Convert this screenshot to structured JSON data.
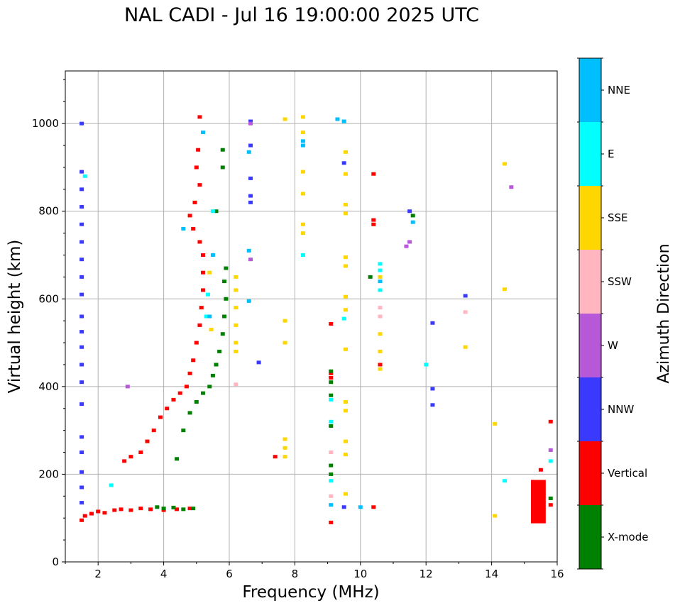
{
  "chart_data": {
    "type": "scatter",
    "title": "NAL CADI - Jul 16 19:00:00 2025 UTC",
    "xlabel": "Frequency (MHz)",
    "ylabel": "Virtual height (km)",
    "xlim": [
      1,
      16
    ],
    "ylim": [
      0,
      1120
    ],
    "xticks": [
      2,
      4,
      6,
      8,
      10,
      12,
      14,
      16
    ],
    "yticks": [
      0,
      200,
      400,
      600,
      800,
      1000
    ],
    "grid": true,
    "colorbar": {
      "label": "Azimuth Direction",
      "categories": [
        {
          "name": "X-mode",
          "color": "#008000"
        },
        {
          "name": "Vertical",
          "color": "#ff0000"
        },
        {
          "name": "NNW",
          "color": "#3a3aff"
        },
        {
          "name": "W",
          "color": "#b658d8"
        },
        {
          "name": "SSW",
          "color": "#ffb6c1"
        },
        {
          "name": "SSE",
          "color": "#ffd700"
        },
        {
          "name": "E",
          "color": "#00ffff"
        },
        {
          "name": "NNE",
          "color": "#00bfff"
        }
      ]
    },
    "series": [
      {
        "name": "Vertical",
        "points": [
          [
            1.5,
            95
          ],
          [
            1.6,
            105
          ],
          [
            1.8,
            110
          ],
          [
            2.0,
            115
          ],
          [
            2.2,
            112
          ],
          [
            2.5,
            118
          ],
          [
            2.7,
            120
          ],
          [
            3.0,
            118
          ],
          [
            3.3,
            122
          ],
          [
            3.6,
            120
          ],
          [
            4.0,
            118
          ],
          [
            4.4,
            120
          ],
          [
            4.8,
            122
          ],
          [
            2.8,
            230
          ],
          [
            3.0,
            240
          ],
          [
            3.3,
            250
          ],
          [
            3.5,
            275
          ],
          [
            3.7,
            300
          ],
          [
            3.9,
            330
          ],
          [
            4.1,
            350
          ],
          [
            4.3,
            370
          ],
          [
            4.5,
            385
          ],
          [
            4.7,
            400
          ],
          [
            4.8,
            430
          ],
          [
            4.9,
            460
          ],
          [
            5.0,
            500
          ],
          [
            5.1,
            540
          ],
          [
            5.15,
            580
          ],
          [
            5.2,
            620
          ],
          [
            5.2,
            660
          ],
          [
            5.2,
            700
          ],
          [
            5.1,
            730
          ],
          [
            4.9,
            760
          ],
          [
            4.8,
            790
          ],
          [
            4.95,
            820
          ],
          [
            5.1,
            860
          ],
          [
            5.0,
            900
          ],
          [
            5.05,
            940
          ],
          [
            5.1,
            1015
          ],
          [
            9.1,
            90
          ],
          [
            9.1,
            420
          ],
          [
            9.1,
            430
          ],
          [
            9.1,
            543
          ],
          [
            10.4,
            125
          ],
          [
            10.4,
            770
          ],
          [
            10.4,
            780
          ],
          [
            10.4,
            885
          ],
          [
            10.6,
            450
          ],
          [
            7.4,
            240
          ],
          [
            15.5,
            210
          ],
          [
            15.8,
            320
          ],
          [
            15.8,
            130
          ]
        ]
      },
      {
        "name": "X-mode",
        "points": [
          [
            3.8,
            125
          ],
          [
            4.0,
            122
          ],
          [
            4.3,
            124
          ],
          [
            4.6,
            120
          ],
          [
            4.9,
            122
          ],
          [
            4.4,
            235
          ],
          [
            4.6,
            300
          ],
          [
            4.8,
            340
          ],
          [
            5.0,
            365
          ],
          [
            5.2,
            385
          ],
          [
            5.4,
            400
          ],
          [
            5.5,
            425
          ],
          [
            5.6,
            450
          ],
          [
            5.7,
            480
          ],
          [
            5.8,
            520
          ],
          [
            5.85,
            560
          ],
          [
            5.9,
            600
          ],
          [
            5.85,
            640
          ],
          [
            5.9,
            670
          ],
          [
            5.6,
            800
          ],
          [
            5.8,
            900
          ],
          [
            5.8,
            940
          ],
          [
            9.1,
            200
          ],
          [
            9.1,
            220
          ],
          [
            9.1,
            310
          ],
          [
            9.1,
            380
          ],
          [
            9.1,
            410
          ],
          [
            9.1,
            435
          ],
          [
            10.3,
            650
          ],
          [
            11.6,
            790
          ],
          [
            15.8,
            145
          ]
        ]
      },
      {
        "name": "NNW",
        "points": [
          [
            1.5,
            1000
          ],
          [
            1.5,
            890
          ],
          [
            1.5,
            850
          ],
          [
            1.5,
            810
          ],
          [
            1.5,
            770
          ],
          [
            1.5,
            730
          ],
          [
            1.5,
            690
          ],
          [
            1.5,
            650
          ],
          [
            1.5,
            610
          ],
          [
            1.5,
            560
          ],
          [
            1.5,
            525
          ],
          [
            1.5,
            490
          ],
          [
            1.5,
            450
          ],
          [
            1.5,
            410
          ],
          [
            1.5,
            360
          ],
          [
            1.5,
            285
          ],
          [
            1.5,
            250
          ],
          [
            1.5,
            205
          ],
          [
            1.5,
            170
          ],
          [
            1.5,
            135
          ],
          [
            6.65,
            1005
          ],
          [
            6.65,
            950
          ],
          [
            6.65,
            875
          ],
          [
            6.65,
            835
          ],
          [
            6.65,
            820
          ],
          [
            6.9,
            455
          ],
          [
            9.5,
            910
          ],
          [
            9.5,
            125
          ],
          [
            12.2,
            545
          ],
          [
            12.2,
            395
          ],
          [
            12.2,
            358
          ],
          [
            13.2,
            607
          ],
          [
            11.5,
            800
          ]
        ]
      },
      {
        "name": "W",
        "points": [
          [
            2.9,
            400
          ],
          [
            6.65,
            1000
          ],
          [
            6.65,
            690
          ],
          [
            11.4,
            720
          ],
          [
            14.6,
            855
          ],
          [
            15.8,
            255
          ],
          [
            11.5,
            730
          ]
        ]
      },
      {
        "name": "SSW",
        "points": [
          [
            9.1,
            250
          ],
          [
            9.1,
            150
          ],
          [
            10.6,
            580
          ],
          [
            10.6,
            560
          ],
          [
            13.2,
            570
          ],
          [
            6.2,
            405
          ]
        ]
      },
      {
        "name": "SSE",
        "points": [
          [
            6.2,
            650
          ],
          [
            6.2,
            620
          ],
          [
            6.2,
            580
          ],
          [
            6.2,
            540
          ],
          [
            6.2,
            500
          ],
          [
            6.2,
            480
          ],
          [
            5.45,
            530
          ],
          [
            5.4,
            660
          ],
          [
            7.7,
            280
          ],
          [
            7.7,
            260
          ],
          [
            7.7,
            240
          ],
          [
            7.7,
            550
          ],
          [
            7.7,
            500
          ],
          [
            7.7,
            1010
          ],
          [
            8.25,
            1015
          ],
          [
            8.25,
            980
          ],
          [
            8.25,
            890
          ],
          [
            8.25,
            840
          ],
          [
            8.25,
            770
          ],
          [
            8.25,
            750
          ],
          [
            9.55,
            935
          ],
          [
            9.55,
            885
          ],
          [
            9.55,
            815
          ],
          [
            9.55,
            795
          ],
          [
            9.55,
            695
          ],
          [
            9.55,
            675
          ],
          [
            9.55,
            605
          ],
          [
            9.55,
            575
          ],
          [
            9.55,
            485
          ],
          [
            9.55,
            365
          ],
          [
            9.55,
            345
          ],
          [
            9.55,
            275
          ],
          [
            9.55,
            245
          ],
          [
            9.55,
            155
          ],
          [
            10.6,
            520
          ],
          [
            10.6,
            480
          ],
          [
            10.6,
            440
          ],
          [
            10.6,
            650
          ],
          [
            13.2,
            490
          ],
          [
            14.1,
            315
          ],
          [
            14.1,
            105
          ],
          [
            14.4,
            908
          ],
          [
            14.4,
            622
          ]
        ]
      },
      {
        "name": "E",
        "points": [
          [
            1.6,
            880
          ],
          [
            2.4,
            175
          ],
          [
            5.3,
            560
          ],
          [
            5.35,
            610
          ],
          [
            5.5,
            800
          ],
          [
            8.25,
            700
          ],
          [
            9.1,
            185
          ],
          [
            9.1,
            370
          ],
          [
            9.1,
            320
          ],
          [
            9.5,
            1005
          ],
          [
            9.5,
            555
          ],
          [
            10.6,
            680
          ],
          [
            10.6,
            665
          ],
          [
            10.6,
            620
          ],
          [
            12.0,
            450
          ],
          [
            14.4,
            185
          ],
          [
            15.8,
            230
          ]
        ]
      },
      {
        "name": "NNE",
        "points": [
          [
            5.4,
            560
          ],
          [
            5.5,
            700
          ],
          [
            5.2,
            980
          ],
          [
            6.6,
            710
          ],
          [
            6.6,
            595
          ],
          [
            6.6,
            935
          ],
          [
            8.25,
            960
          ],
          [
            8.25,
            950
          ],
          [
            9.1,
            130
          ],
          [
            9.3,
            1010
          ],
          [
            9.5,
            1005
          ],
          [
            10.0,
            125
          ],
          [
            10.6,
            640
          ],
          [
            11.6,
            775
          ],
          [
            4.6,
            760
          ]
        ]
      }
    ],
    "blocks": [
      {
        "name": "Vertical",
        "x": [
          15.2,
          15.65
        ],
        "y": [
          88,
          187
        ]
      }
    ]
  }
}
